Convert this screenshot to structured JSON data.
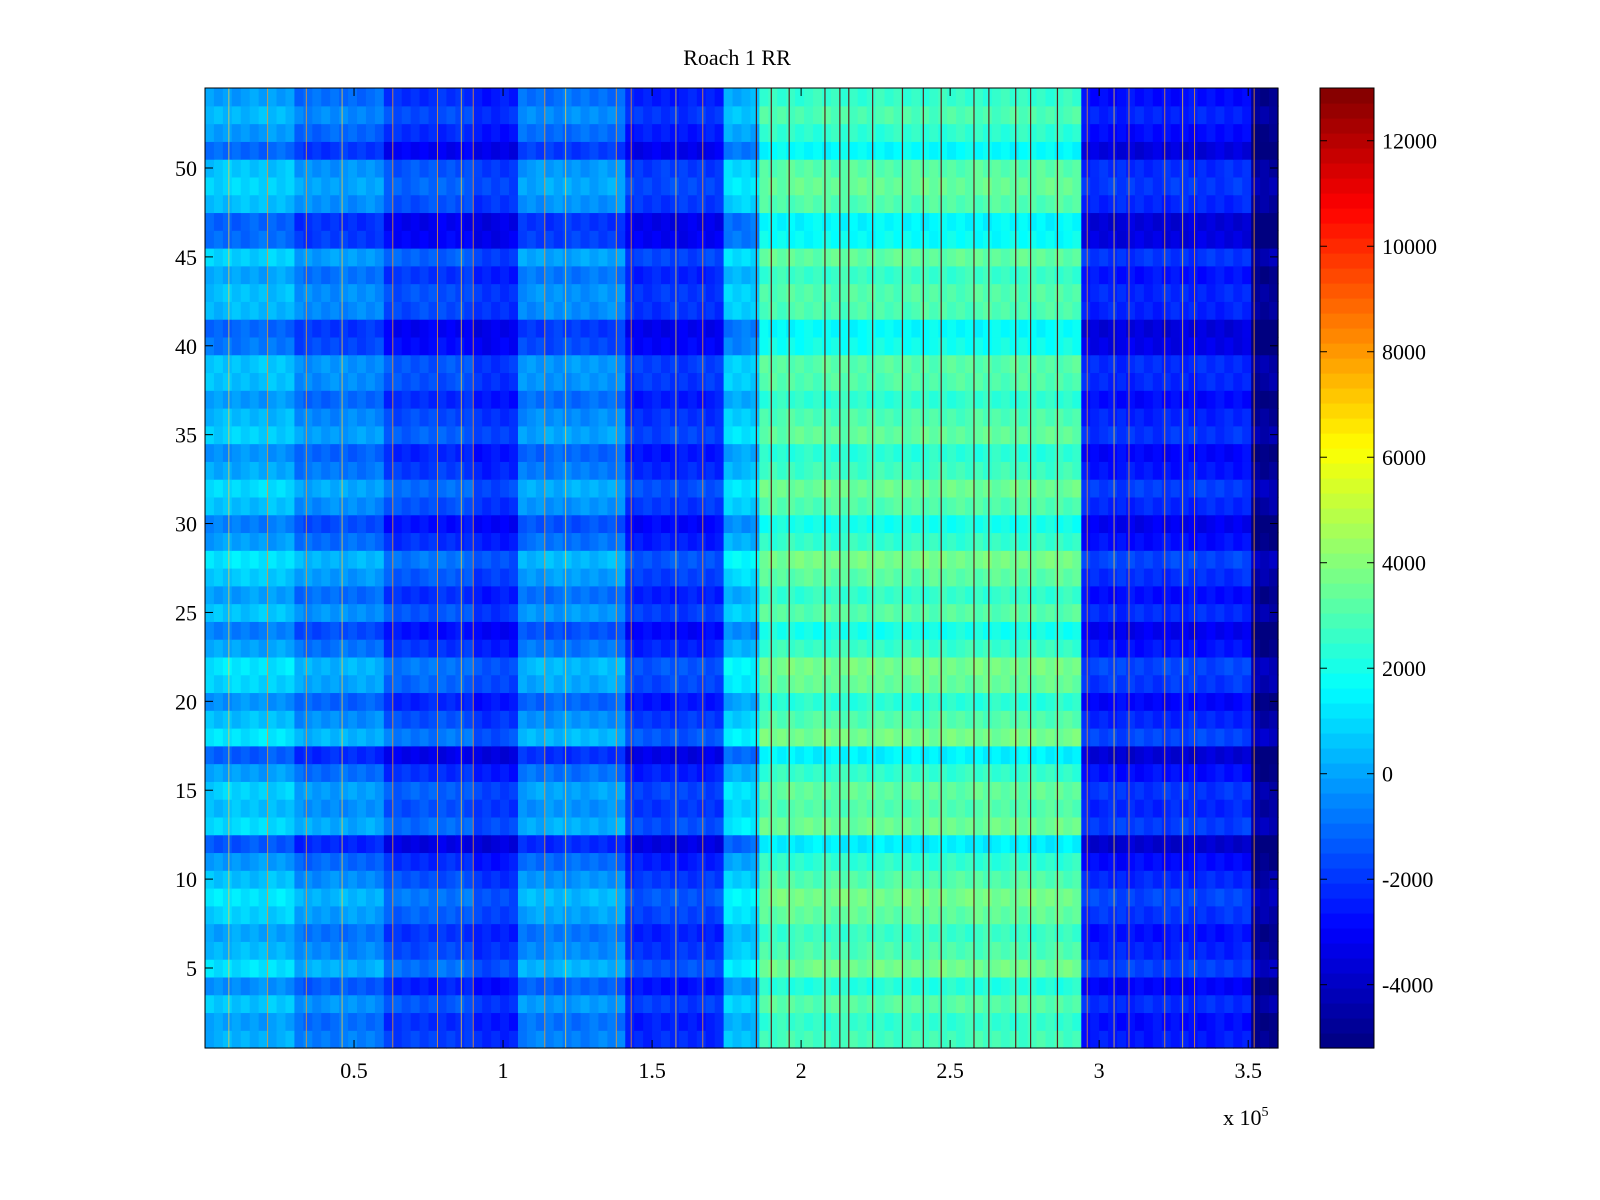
{
  "chart_data": {
    "type": "heatmap",
    "title": "Roach 1 RR",
    "xlabel": "",
    "ylabel": "",
    "x_multiplier_label": "x 10",
    "x_multiplier_exponent": "5",
    "xlim": [
      0,
      360000
    ],
    "ylim": [
      0.5,
      54.5
    ],
    "rows": 54,
    "x_ticks": [
      {
        "value": 50000,
        "label": "0.5"
      },
      {
        "value": 100000,
        "label": "1"
      },
      {
        "value": 150000,
        "label": "1.5"
      },
      {
        "value": 200000,
        "label": "2"
      },
      {
        "value": 250000,
        "label": "2.5"
      },
      {
        "value": 300000,
        "label": "3"
      },
      {
        "value": 350000,
        "label": "3.5"
      }
    ],
    "y_ticks": [
      {
        "value": 5,
        "label": "5"
      },
      {
        "value": 10,
        "label": "10"
      },
      {
        "value": 15,
        "label": "15"
      },
      {
        "value": 20,
        "label": "20"
      },
      {
        "value": 25,
        "label": "25"
      },
      {
        "value": 30,
        "label": "30"
      },
      {
        "value": 35,
        "label": "35"
      },
      {
        "value": 40,
        "label": "40"
      },
      {
        "value": 45,
        "label": "45"
      },
      {
        "value": 50,
        "label": "50"
      }
    ],
    "colorbar": {
      "colormap": "jet",
      "clim": [
        -5200,
        13000
      ],
      "ticks": [
        {
          "value": -4000,
          "label": "-4000"
        },
        {
          "value": -2000,
          "label": "-2000"
        },
        {
          "value": 0,
          "label": "0"
        },
        {
          "value": 2000,
          "label": "2000"
        },
        {
          "value": 4000,
          "label": "4000"
        },
        {
          "value": 6000,
          "label": "6000"
        },
        {
          "value": 8000,
          "label": "8000"
        },
        {
          "value": 10000,
          "label": "10000"
        },
        {
          "value": 12000,
          "label": "12000"
        }
      ]
    },
    "column_profile": [
      {
        "x_start": 0,
        "x_end": 30000,
        "value": 200
      },
      {
        "x_start": 30000,
        "x_end": 60000,
        "value": -700
      },
      {
        "x_start": 60000,
        "x_end": 90000,
        "value": -1800
      },
      {
        "x_start": 90000,
        "x_end": 105000,
        "value": -2300
      },
      {
        "x_start": 105000,
        "x_end": 140000,
        "value": -600
      },
      {
        "x_start": 140000,
        "x_end": 175000,
        "value": -2200
      },
      {
        "x_start": 175000,
        "x_end": 185000,
        "value": 500
      },
      {
        "x_start": 185000,
        "x_end": 295000,
        "value": 2800
      },
      {
        "x_start": 295000,
        "x_end": 352000,
        "value": -2500
      },
      {
        "x_start": 352000,
        "x_end": 360000,
        "value": -4800
      }
    ],
    "row_offsets": [
      0,
      -300,
      400,
      -600,
      900,
      200,
      -200,
      600,
      1000,
      300,
      -400,
      -1600,
      800,
      300,
      600,
      -300,
      -1500,
      1000,
      300,
      -500,
      700,
      1000,
      -200,
      -900,
      400,
      -300,
      500,
      1000,
      -300,
      -900,
      300,
      800,
      -100,
      -500,
      600,
      200,
      -400,
      300,
      400,
      -1000,
      -1300,
      200,
      300,
      -200,
      600,
      -1200,
      -1400,
      300,
      700,
      400,
      -1300,
      -400,
      200,
      -300
    ],
    "streak_xs": [
      8000,
      21000,
      34000,
      46000,
      63000,
      78000,
      86000,
      90000,
      114000,
      121000,
      138000,
      143000,
      158000,
      167000,
      185000,
      190000,
      196000,
      208000,
      213000,
      216000,
      224000,
      234000,
      241000,
      247000,
      258000,
      263000,
      272000,
      277000,
      286000,
      296000,
      305000,
      310000,
      322000,
      328000,
      332000,
      352000
    ]
  }
}
